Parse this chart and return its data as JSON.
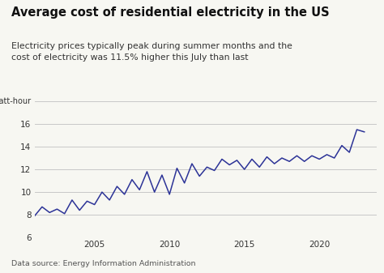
{
  "title": "Average cost of residential electricity in the US",
  "subtitle": "Electricity prices typically peak during summer months and the\ncost of electricity was 11.5% higher this July than last",
  "data_source": "Data source: Energy Information Administration",
  "line_color": "#2c3397",
  "background_color": "#f7f7f2",
  "ylim": [
    6,
    18.5
  ],
  "yticks": [
    6,
    8,
    10,
    12,
    14,
    16
  ],
  "ytick_labels": [
    "6",
    "8",
    "10",
    "12",
    "14",
    "16"
  ],
  "xticks": [
    2005,
    2010,
    2015,
    2020
  ],
  "xlim": [
    2001.0,
    2023.8
  ],
  "years": [
    2001.0,
    2001.5,
    2002.0,
    2002.5,
    2003.0,
    2003.5,
    2004.0,
    2004.5,
    2005.0,
    2005.5,
    2006.0,
    2006.5,
    2007.0,
    2007.5,
    2008.0,
    2008.5,
    2009.0,
    2009.5,
    2010.0,
    2010.5,
    2011.0,
    2011.5,
    2012.0,
    2012.5,
    2013.0,
    2013.5,
    2014.0,
    2014.5,
    2015.0,
    2015.5,
    2016.0,
    2016.5,
    2017.0,
    2017.5,
    2018.0,
    2018.5,
    2019.0,
    2019.5,
    2020.0,
    2020.5,
    2021.0,
    2021.5,
    2022.0,
    2022.5,
    2023.0
  ],
  "values": [
    7.9,
    8.7,
    8.2,
    8.5,
    8.1,
    9.3,
    8.4,
    9.2,
    8.9,
    10.0,
    9.3,
    10.5,
    9.8,
    11.1,
    10.2,
    11.8,
    10.0,
    11.5,
    9.8,
    12.1,
    10.8,
    12.5,
    11.4,
    12.2,
    11.9,
    12.9,
    12.4,
    12.8,
    12.0,
    12.9,
    12.2,
    13.1,
    12.5,
    13.0,
    12.7,
    13.2,
    12.7,
    13.2,
    12.9,
    13.3,
    13.0,
    14.1,
    13.5,
    15.5,
    15.3
  ]
}
